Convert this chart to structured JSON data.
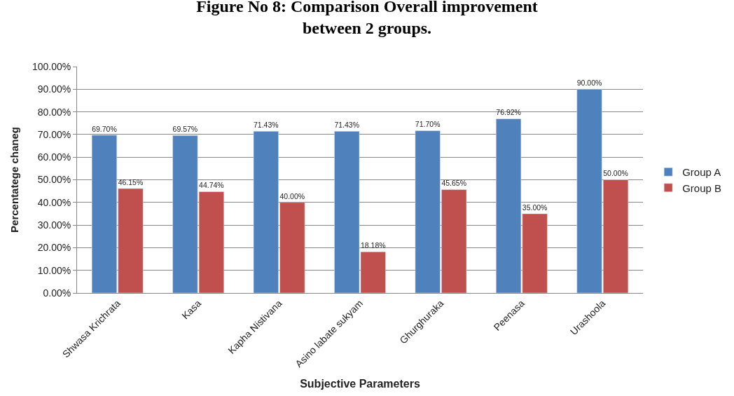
{
  "chart_data": {
    "type": "bar",
    "title": "Figure No 8: Comparison Overall improvement\nbetween 2 groups.",
    "xlabel": "Subjective Parameters",
    "ylabel": "Percentatege chaneg",
    "categories": [
      "Shwasa Krichrata",
      "Kasa",
      "Kapha Nistivana",
      "Asino labate sukyam",
      "Ghurghuraka",
      "Peenasa",
      "Urashoola"
    ],
    "series": [
      {
        "name": "Group A",
        "color": "#4f81bd",
        "values": [
          69.7,
          69.57,
          71.43,
          71.43,
          71.7,
          76.92,
          90.0
        ],
        "value_labels": [
          "69.70%",
          "69.57%",
          "71.43%",
          "71.43%",
          "71.70%",
          "76.92%",
          "90.00%"
        ]
      },
      {
        "name": "Group B",
        "color": "#c0504d",
        "values": [
          46.15,
          44.74,
          40.0,
          18.18,
          45.65,
          35.0,
          50.0
        ],
        "value_labels": [
          "46.15%",
          "44.74%",
          "40.00%",
          "18.18%",
          "45.65%",
          "35.00%",
          "50.00%"
        ]
      }
    ],
    "ylim": [
      0,
      100
    ],
    "yticks": [
      {
        "value": 0,
        "label": "0.00%"
      },
      {
        "value": 10,
        "label": "10.00%"
      },
      {
        "value": 20,
        "label": "20.00%"
      },
      {
        "value": 30,
        "label": "30.00%"
      },
      {
        "value": 40,
        "label": "40.00%"
      },
      {
        "value": 50,
        "label": "50.00%"
      },
      {
        "value": 60,
        "label": "60.00%"
      },
      {
        "value": 70,
        "label": "70.00%"
      },
      {
        "value": 80,
        "label": "80.00%"
      },
      {
        "value": 90,
        "label": "90.00%"
      },
      {
        "value": 100,
        "label": "100.00%"
      }
    ],
    "grid": "y",
    "legend": "right"
  }
}
